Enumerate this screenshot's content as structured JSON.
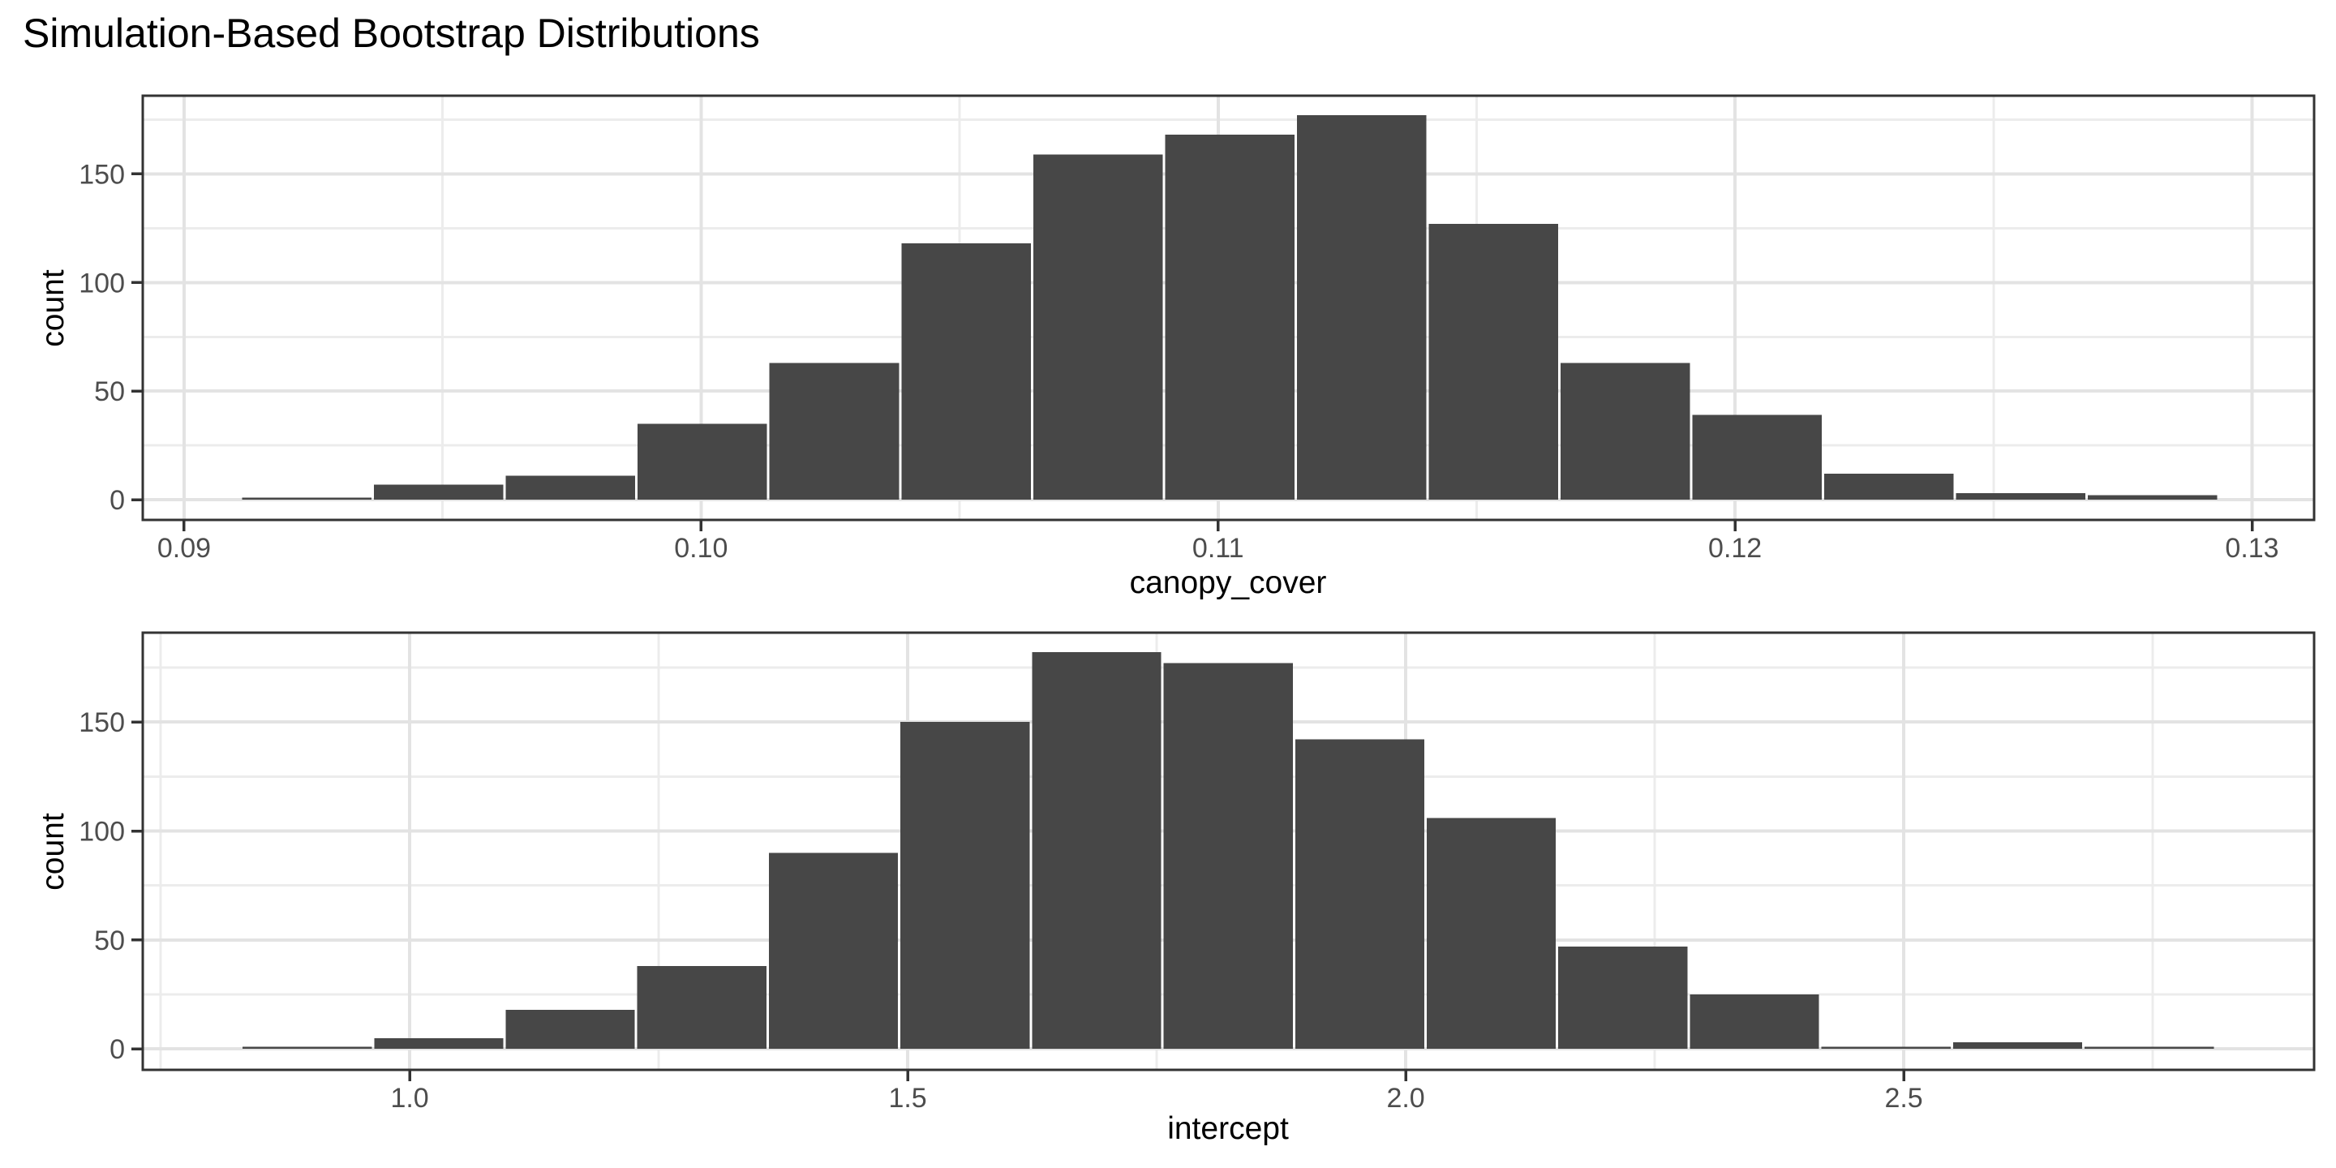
{
  "title": "Simulation-Based Bootstrap Distributions",
  "theme": {
    "background": "#ffffff",
    "bar_fill": "#474747",
    "bar_separator": "#ffffff",
    "grid_major": "#e3e3e3",
    "grid_minor": "#ececec",
    "panel_border": "#333333",
    "tick_mark_color": "#333333",
    "tick_label_color": "#4d4d4d",
    "title_color": "#000000"
  },
  "chart_data": [
    {
      "type": "bar",
      "subtype": "histogram",
      "title": "",
      "xlabel": "canopy_cover",
      "ylabel": "count",
      "bin_start": 0.0911,
      "bin_width": 0.00255,
      "counts": [
        1,
        7,
        11,
        35,
        63,
        118,
        159,
        168,
        177,
        127,
        63,
        39,
        12,
        3,
        2
      ],
      "bin_centers": [
        0.0924,
        0.0949,
        0.0975,
        0.1,
        0.1026,
        0.1051,
        0.1077,
        0.1102,
        0.1128,
        0.1153,
        0.1179,
        0.1204,
        0.123,
        0.1255,
        0.1281
      ],
      "x_ticks": [
        0.09,
        0.1,
        0.11,
        0.12,
        0.13
      ],
      "x_tick_labels": [
        "0.09",
        "0.10",
        "0.11",
        "0.12",
        "0.13"
      ],
      "y_ticks": [
        0,
        50,
        100,
        150
      ],
      "y_tick_labels": [
        "0",
        "50",
        "100",
        "150"
      ],
      "y_minor_ticks": [
        25,
        75,
        125,
        175
      ],
      "xlim": [
        0.0892,
        0.1312
      ],
      "ylim": [
        -9.3,
        186
      ],
      "grid": true,
      "legend": false
    },
    {
      "type": "bar",
      "subtype": "histogram",
      "title": "",
      "xlabel": "intercept",
      "ylabel": "count",
      "bin_start": 0.831,
      "bin_width": 0.1321,
      "counts": [
        1,
        5,
        18,
        38,
        90,
        150,
        182,
        177,
        142,
        106,
        47,
        25,
        1,
        3,
        1
      ],
      "bin_centers": [
        0.9,
        1.03,
        1.16,
        1.29,
        1.42,
        1.56,
        1.69,
        1.82,
        1.95,
        2.08,
        2.22,
        2.35,
        2.48,
        2.61,
        2.74
      ],
      "x_ticks": [
        1.0,
        1.5,
        2.0,
        2.5
      ],
      "x_tick_labels": [
        "1.0",
        "1.5",
        "2.0",
        "2.5"
      ],
      "y_ticks": [
        0,
        50,
        100,
        150
      ],
      "y_tick_labels": [
        "0",
        "50",
        "100",
        "150"
      ],
      "y_minor_ticks": [
        25,
        75,
        125,
        175
      ],
      "xlim": [
        0.732,
        2.912
      ],
      "ylim": [
        -9.6,
        191
      ],
      "grid": true,
      "legend": false
    }
  ]
}
